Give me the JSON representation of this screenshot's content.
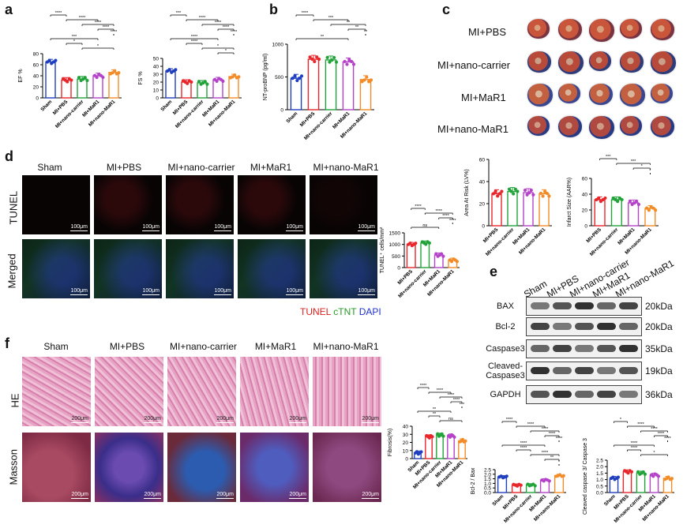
{
  "panel_labels": {
    "a": "a",
    "b": "b",
    "c": "c",
    "d": "d",
    "e": "e",
    "f": "f"
  },
  "groups": [
    "Sham",
    "MI+PBS",
    "MI+nano-carrier",
    "MI+MaR1",
    "MI+nano-MaR1"
  ],
  "colors": {
    "sham": "#1f3fbf",
    "pbs": "#e8262b",
    "carrier": "#22a33a",
    "mar1": "#b543c9",
    "nanomar1": "#f28c28"
  },
  "panel_a": {
    "chart_data": [
      {
        "type": "bar",
        "ylabel": "EF %",
        "ylim": [
          0,
          80
        ],
        "yticks": [
          "0",
          "20",
          "40",
          "60",
          "80"
        ],
        "categories": [
          "Sham",
          "MI+PBS",
          "MI+nano-carrier",
          "MI+MaR1",
          "MI+nano-MaR1"
        ],
        "values": [
          65,
          32,
          34,
          40,
          46
        ],
        "significance": [
          "****",
          "****",
          "****",
          "****",
          "****",
          "***",
          "*",
          "*"
        ]
      },
      {
        "type": "bar",
        "ylabel": "FS %",
        "ylim": [
          0,
          50
        ],
        "yticks": [
          "0",
          "10",
          "20",
          "30",
          "40",
          "50"
        ],
        "categories": [
          "Sham",
          "MI+PBS",
          "MI+nano-carrier",
          "MI+MaR1",
          "MI+nano-MaR1"
        ],
        "values": [
          34,
          20,
          19,
          23,
          27
        ],
        "significance": [
          "***",
          "****",
          "****",
          "****",
          "****",
          "****",
          "****",
          "*",
          "*"
        ]
      }
    ]
  },
  "panel_b": {
    "chart_data": {
      "type": "bar",
      "ylabel": "NT-proBNP (pg/ml)",
      "ylim": [
        0,
        1000
      ],
      "yticks": [
        "0",
        "500",
        "1000"
      ],
      "categories": [
        "Sham",
        "MI+PBS",
        "MI+nano-carrier",
        "MI+MaR1",
        "MI+nano-MaR1"
      ],
      "values": [
        480,
        770,
        760,
        730,
        460
      ],
      "significance": [
        "****",
        "***",
        "**",
        "**",
        "**",
        "**"
      ]
    }
  },
  "panel_c": {
    "row_labels": [
      "MI+PBS",
      "MI+nano-carrier",
      "MI+MaR1",
      "MI+nano-MaR1"
    ],
    "chart_data": [
      {
        "type": "bar",
        "ylabel": "Area At Risk (LV%)",
        "ylim": [
          0,
          60
        ],
        "yticks": [
          "0",
          "20",
          "40",
          "60"
        ],
        "categories": [
          "MI+PBS",
          "MI+nano-carrier",
          "MI+MaR1",
          "MI+nano-MaR1"
        ],
        "values": [
          29,
          31,
          30,
          29
        ]
      },
      {
        "type": "bar",
        "ylabel": "Infarct Size (AAR%)",
        "ylim": [
          0,
          60
        ],
        "yticks": [
          "0",
          "20",
          "40",
          "60"
        ],
        "categories": [
          "MI+PBS",
          "MI+nano-carrier",
          "MI+MaR1",
          "MI+nano-MaR1"
        ],
        "values": [
          33,
          33,
          29,
          22
        ],
        "significance": [
          "***",
          "***",
          "*",
          "*"
        ]
      }
    ]
  },
  "panel_d": {
    "col_labels": [
      "Sham",
      "MI+PBS",
      "MI+nano-carrier",
      "MI+MaR1",
      "MI+nano-MaR1"
    ],
    "row_labels": [
      "TUNEL",
      "Merged"
    ],
    "scale_bar": "100μm",
    "stain_legend": [
      {
        "text": "TUNEL",
        "color": "#e02020"
      },
      {
        "text": "cTNT",
        "color": "#2a9a2a"
      },
      {
        "text": "DAPI",
        "color": "#2030d0"
      }
    ],
    "chart_data": {
      "type": "bar",
      "ylabel": "TUNEL⁺ cells/mm²",
      "ylim": [
        0,
        1500
      ],
      "yticks": [
        "0",
        "500",
        "1000",
        "1500"
      ],
      "categories": [
        "MI+PBS",
        "MI+nano-carrier",
        "MI+MaR1",
        "MI+nano-MaR1"
      ],
      "values": [
        1000,
        1060,
        540,
        320
      ],
      "significance": [
        "****",
        "****",
        "****",
        "****",
        "ns"
      ]
    }
  },
  "panel_e": {
    "lanes": [
      "Sham",
      "MI+PBS",
      "MI+nano-carrier",
      "MI+MaR1",
      "MI+nano-MaR1"
    ],
    "blots": [
      {
        "name": "BAX",
        "kda": "20kDa"
      },
      {
        "name": "Bcl-2",
        "kda": "20kDa"
      },
      {
        "name": "Caspase3",
        "kda": "35kDa"
      },
      {
        "name": "Cleaved-Caspase3",
        "kda": "19kDa"
      },
      {
        "name": "GAPDH",
        "kda": "36kDa"
      }
    ],
    "chart_data": [
      {
        "type": "bar",
        "ylabel": "Bcl-2 / Bax",
        "ylim": [
          0,
          2.5
        ],
        "yticks": [
          "0.0",
          "0.5",
          "1.0",
          "1.5",
          "2.0",
          "2.5"
        ],
        "categories": [
          "Sham",
          "MI+PBS",
          "MI+nano-carrier",
          "MI+MaR1",
          "MI+nano-MaR1"
        ],
        "values": [
          1.7,
          0.8,
          0.82,
          1.35,
          1.85
        ],
        "significance": [
          "****",
          "****",
          "****",
          "****",
          "****",
          "****",
          "****",
          "****",
          "**",
          "*"
        ]
      },
      {
        "type": "bar",
        "ylabel": "Cleaved caspase 3/ Caspase 3",
        "ylim": [
          0,
          2.5
        ],
        "yticks": [
          "0.0",
          "0.5",
          "1.0",
          "1.5",
          "2.0",
          "2.5"
        ],
        "categories": [
          "Sham",
          "MI+PBS",
          "MI+nano-carrier",
          "MI+MaR1",
          "MI+nano-MaR1"
        ],
        "values": [
          1.1,
          1.6,
          1.5,
          1.35,
          1.1
        ],
        "significance": [
          "*",
          "****",
          "****",
          "****",
          "****",
          "****",
          "****",
          "*"
        ]
      }
    ]
  },
  "panel_f": {
    "col_labels": [
      "Sham",
      "MI+PBS",
      "MI+nano-carrier",
      "MI+MaR1",
      "MI+nano-MaR1"
    ],
    "row_labels": [
      "HE",
      "Masson"
    ],
    "scale_bar": "200μm",
    "chart_data": {
      "type": "bar",
      "ylabel": "Fibrosis(%)",
      "ylim": [
        0,
        40
      ],
      "yticks": [
        "0",
        "10",
        "20",
        "30",
        "40"
      ],
      "categories": [
        "Sham",
        "MI+PBS",
        "MI+nano-carrier",
        "MI+MaR1",
        "MI+nano-MaR1"
      ],
      "values": [
        7,
        27,
        29,
        28,
        22
      ],
      "significance": [
        "****",
        "****",
        "****",
        "****",
        "***",
        "**",
        "**",
        "ns"
      ]
    }
  }
}
